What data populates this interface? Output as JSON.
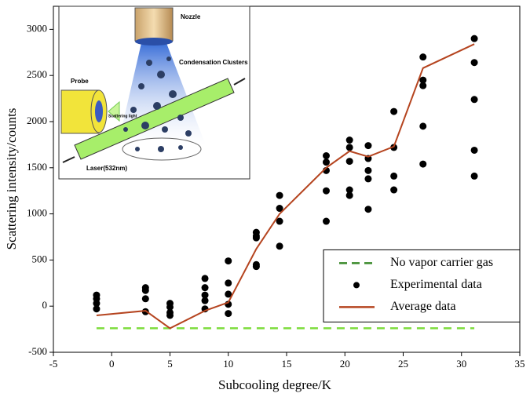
{
  "chart_data": {
    "type": "scatter-line",
    "xlabel": "Subcooling degree/K",
    "ylabel": "Scattering intensity/counts",
    "xlim": [
      -5,
      35
    ],
    "xticks": [
      -5,
      0,
      5,
      10,
      15,
      20,
      25,
      30,
      35
    ],
    "ylim": [
      -500,
      3250
    ],
    "yticks": [
      -500,
      0,
      500,
      1000,
      1500,
      2000,
      2500,
      3000
    ],
    "legend": "lower right",
    "series": [
      {
        "name": "No vapor carrier gas",
        "color": "#7ddc3c",
        "style": "dashed",
        "x": [
          -1.3,
          31.1
        ],
        "values": [
          -240,
          -240
        ]
      },
      {
        "name": "Experimental data",
        "color": "#000000",
        "style": "markers",
        "x": [
          -1.3,
          -1.3,
          -1.3,
          -1.3,
          2.9,
          2.9,
          2.9,
          2.9,
          5,
          5,
          5,
          5,
          8,
          8,
          8,
          8,
          8,
          10,
          10,
          10,
          10,
          10,
          12.4,
          12.4,
          12.4,
          12.4,
          12.4,
          14.4,
          14.4,
          14.4,
          14.4,
          18.4,
          18.4,
          18.4,
          18.4,
          18.4,
          20.4,
          20.4,
          20.4,
          20.4,
          20.4,
          22,
          22,
          22,
          22,
          22,
          24.2,
          24.2,
          24.2,
          24.2,
          26.7,
          26.7,
          26.7,
          26.7,
          26.7,
          31.1,
          31.1,
          31.1,
          31.1,
          31.1
        ],
        "values": [
          120,
          80,
          30,
          -30,
          200,
          170,
          80,
          -60,
          30,
          -10,
          -70,
          -100,
          300,
          200,
          120,
          60,
          -30,
          490,
          250,
          130,
          20,
          -80,
          800,
          760,
          740,
          450,
          430,
          1200,
          1060,
          920,
          650,
          1630,
          1560,
          1470,
          1250,
          920,
          1800,
          1720,
          1570,
          1260,
          1200,
          1740,
          1600,
          1470,
          1380,
          1050,
          2110,
          1720,
          1410,
          1260,
          2700,
          2450,
          2390,
          1950,
          1540,
          2900,
          2640,
          2240,
          1690,
          1410
        ]
      },
      {
        "name": "Average data",
        "color": "#b5441f",
        "style": "line",
        "x": [
          -1.3,
          2.9,
          5,
          8,
          10,
          12.4,
          14.4,
          18.4,
          20.4,
          22,
          24.2,
          26.7,
          31.1
        ],
        "values": [
          -100,
          -50,
          -240,
          -50,
          40,
          620,
          1000,
          1500,
          1680,
          1620,
          1730,
          2580,
          2840
        ]
      }
    ]
  },
  "inset": {
    "nozzle": "Nozzle",
    "clusters": "Condensation Clusters",
    "probe": "Probe",
    "scattering": "Scattering light",
    "laser": "Laser(532nm)"
  }
}
